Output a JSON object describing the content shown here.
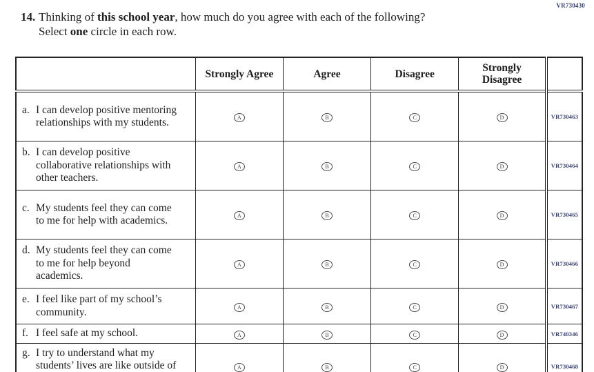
{
  "page_code": "VR730430",
  "question": {
    "number": "14.",
    "intro_prefix": "Thinking of ",
    "intro_bold": "this school year",
    "intro_suffix": ", how much do you agree with each of the following?",
    "select_prefix": "Select ",
    "select_bold": "one",
    "select_suffix": " circle in each row."
  },
  "table": {
    "headers": [
      "Strongly Agree",
      "Agree",
      "Disagree",
      "Strongly Disagree"
    ],
    "options": [
      "A",
      "B",
      "C",
      "D"
    ],
    "rows": [
      {
        "label": "a.",
        "statement": "I can develop positive mentoring relationships with my students.",
        "code": "VR730463"
      },
      {
        "label": "b.",
        "statement": "I can develop positive collaborative relationships with other teachers.",
        "code": "VR730464"
      },
      {
        "label": "c.",
        "statement": "My students feel they can come to me for help with academics.",
        "code": "VR730465"
      },
      {
        "label": "d.",
        "statement": "My students feel they can come to me for help beyond academics.",
        "code": "VR730466"
      },
      {
        "label": "e.",
        "statement": "I feel like part of my school’s community.",
        "code": "VR730467"
      },
      {
        "label": "f.",
        "statement": "I feel safe at my school.",
        "code": "VR740346"
      },
      {
        "label": "g.",
        "statement": "I try to understand what my students’ lives are like outside of school.",
        "code": "VR730468"
      }
    ]
  },
  "colors": {
    "ink": "#1e1e1e",
    "border": "#232323",
    "code_text": "#36406e"
  }
}
